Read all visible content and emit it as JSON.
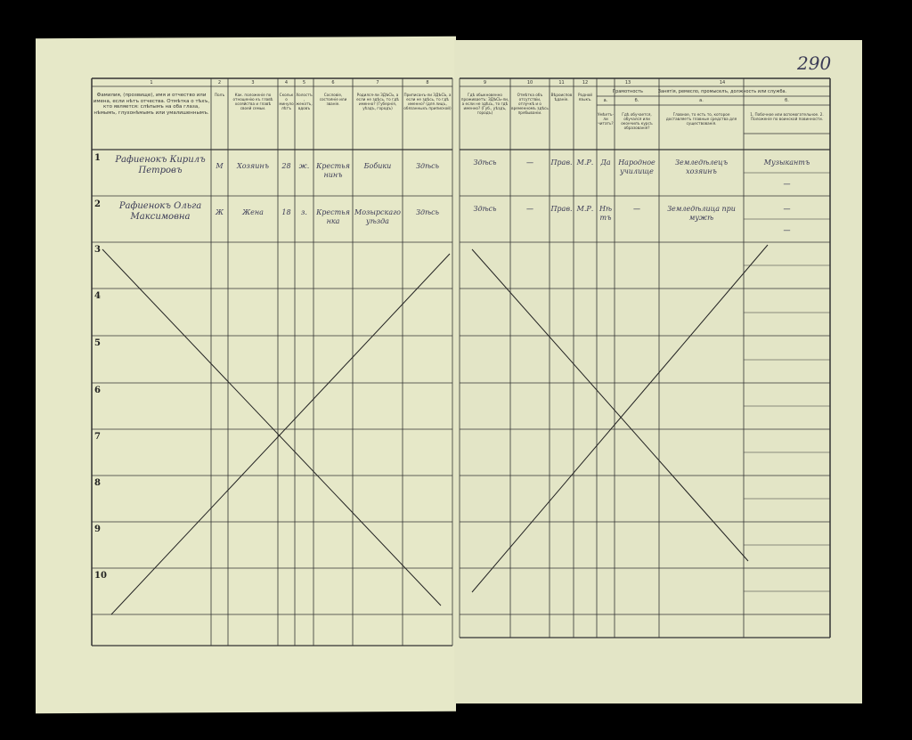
{
  "page_number": "290",
  "left_headers": [
    {
      "num": "1",
      "text": "Фамилия, (прозвище), имя и отчество или имена, если нѣтъ отчества. Отмѣтка о тѣхъ, кто является: слѣпымъ на оба глаза, нѣмымъ, глухонѣмымъ или умалишеннымъ."
    },
    {
      "num": "2",
      "text": "Полъ"
    },
    {
      "num": "3",
      "text": "Как. положеніе по отношенію къ главѣ хозяйства и главѣ своей семьи."
    },
    {
      "num": "4",
      "text": "Сколько минуло лѣтъ"
    },
    {
      "num": "5",
      "text": "Холостъ, женатъ, вдовъ"
    },
    {
      "num": "6",
      "text": "Сословіе, состояніе или званіе."
    },
    {
      "num": "7",
      "text": "Родился-ли ЗДѢСЬ, а если не здѣсь, то гдѣ именно? (Губернія, уѣздъ, городъ)"
    },
    {
      "num": "8",
      "text": "Приписанъ-ли ЗДѢСЬ, а если не здѣсь, то гдѣ именно? (для лицъ, обязанныхъ припиской)"
    }
  ],
  "right_headers": [
    {
      "num": "9",
      "text": "Гдѣ обыкновенно проживаетъ: ЗДѢСЬ-ли, а если не здѣсь, то гдѣ именно? (Губ., уѣздъ, городъ)"
    },
    {
      "num": "10",
      "text": "Отмѣтка объ отсутствіи, отлучкѣ и о временномъ здѣсь пребываніи."
    },
    {
      "num": "11",
      "text": "Вѣроисповѣданіе."
    },
    {
      "num": "12",
      "text": "Родной языкъ."
    },
    {
      "num": "13",
      "text": "Грамотность",
      "sub": [
        {
          "l": "а.",
          "text": "Умѣетъ-ли читать?"
        },
        {
          "l": "б.",
          "text": "Гдѣ обучается, обучался или окончилъ курсъ образованія?"
        }
      ]
    },
    {
      "num": "14",
      "text": "Занятія, ремесло, промыселъ, должность или служба.",
      "sub": [
        {
          "l": "а.",
          "text": "Главное, то есть то, которое доставляетъ главные средства для существованія."
        },
        {
          "l": "б.",
          "text": "1. Побочное или вспомогательное. 2. Положеніе по воинской повинности."
        }
      ]
    }
  ],
  "rows": [
    {
      "no": "1",
      "name": "Рафиенокъ Кирилъ Петровъ",
      "sex": "М",
      "relation": "Хозяинъ",
      "age": "28",
      "marital": "ж.",
      "estate": "Крестьянинъ",
      "born": "Бобики",
      "registered": "Здѣсь",
      "resides": "Здѣсь",
      "absence": "—",
      "religion": "Прав.",
      "language": "М.Р.",
      "literate": "Да",
      "education": "Народное училище",
      "occupation": "Земледѣлецъ хозяинъ",
      "side1": "Музыкантъ",
      "side2": "—"
    },
    {
      "no": "2",
      "name": "Рафиенокъ Ольга Максимовна",
      "sex": "Ж",
      "relation": "Жена",
      "age": "18",
      "marital": "з.",
      "estate": "Крестьянка",
      "born": "Мозырскаго уѣзда",
      "registered": "Здѣсь",
      "resides": "Здѣсь",
      "absence": "—",
      "religion": "Прав.",
      "language": "М.Р.",
      "literate": "Нѣтъ",
      "education": "—",
      "occupation": "Земледѣлица при мужѣ",
      "side1": "—",
      "side2": "—"
    }
  ],
  "empty_rows": [
    "3",
    "4",
    "5",
    "6",
    "7",
    "8",
    "9",
    "10"
  ]
}
